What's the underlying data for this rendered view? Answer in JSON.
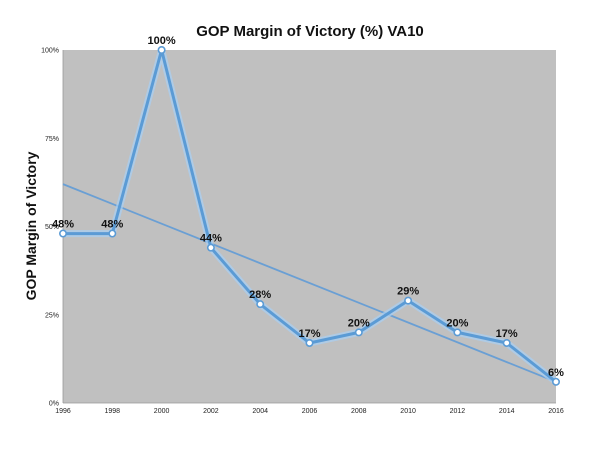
{
  "chart_data": {
    "type": "line",
    "title": "GOP Margin of Victory (%) VA10",
    "xlabel": "",
    "ylabel": "GOP Margin of Victory",
    "categories": [
      "1996",
      "1998",
      "2000",
      "2002",
      "2004",
      "2006",
      "2008",
      "2010",
      "2012",
      "2014",
      "2016"
    ],
    "series": [
      {
        "name": "GOP Margin of Victory",
        "values": [
          48,
          48,
          100,
          44,
          28,
          17,
          20,
          29,
          20,
          17,
          6
        ],
        "labels": [
          "48%",
          "48%",
          "100%",
          "44%",
          "28%",
          "17%",
          "20%",
          "29%",
          "20%",
          "17%",
          "6%"
        ]
      }
    ],
    "trendline": {
      "start": 62,
      "end": 6
    },
    "ylim": [
      0,
      100
    ],
    "yticks": [
      0,
      25,
      50,
      75,
      100
    ],
    "ytick_labels": [
      "0%",
      "25%",
      "50%",
      "75%",
      "100%"
    ],
    "grid": false,
    "legend": "none",
    "colors": {
      "plot_bg": "#c0c0c0",
      "line": "#5b9bd5",
      "glow": "#a8d0f5",
      "trend": "#6a9fd4"
    }
  }
}
